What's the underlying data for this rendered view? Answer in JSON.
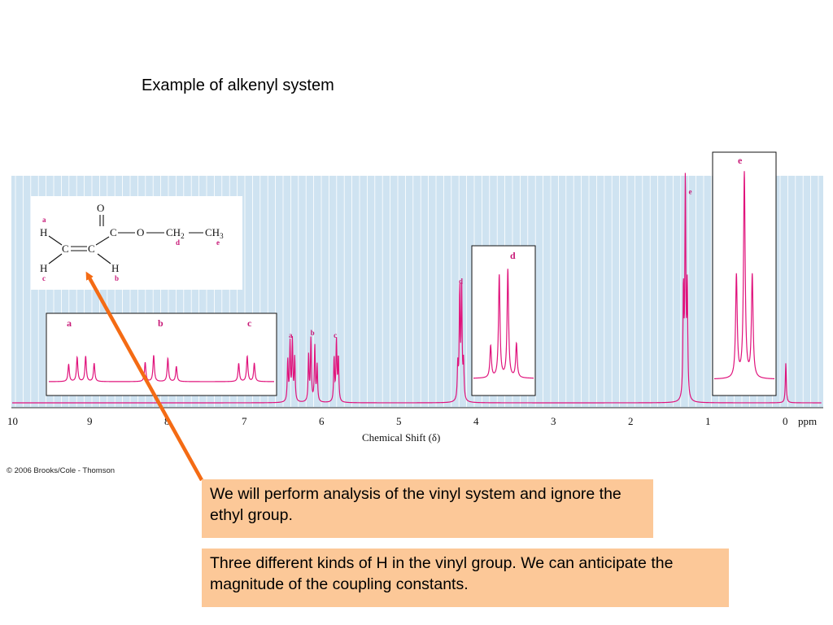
{
  "slide": {
    "title": "Example of alkenyl system",
    "copyright": "© 2006 Brooks/Cole - Thomson",
    "note1": "We will perform analysis of the vinyl system and ignore the ethyl group.",
    "note2": "Three different kinds of H in the vinyl group.  We can anticipate the magnitude of the coupling constants."
  },
  "structure": {
    "O": "O",
    "C": "C",
    "H": "H",
    "CH2": "CH",
    "CH2_sub": "2",
    "CH3": "CH",
    "CH3_sub": "3",
    "labels": [
      "a",
      "b",
      "c",
      "d",
      "e"
    ]
  },
  "colors": {
    "plot_bg": "#cfe3f1",
    "spectrum": "#e0137c",
    "label": "#c81a78",
    "arrow": "#f46b14",
    "note_bg": "#fcc898"
  },
  "chart_data": {
    "type": "line",
    "xlabel": "Chemical Shift (δ)",
    "xunit": "ppm",
    "x_ticks": [
      10,
      9,
      8,
      7,
      6,
      5,
      4,
      3,
      2,
      1,
      0
    ],
    "xlim": [
      10,
      0
    ],
    "x_reversed": true,
    "grid": true,
    "peaks": [
      {
        "label": "a",
        "ppm": 6.4,
        "multiplicity": "dd",
        "lines": [
          6.445,
          6.415,
          6.385,
          6.355
        ],
        "heights": [
          0.34,
          0.48,
          0.5,
          0.36
        ]
      },
      {
        "label": "b",
        "ppm": 6.12,
        "multiplicity": "dd",
        "lines": [
          6.175,
          6.145,
          6.095,
          6.065
        ],
        "heights": [
          0.38,
          0.52,
          0.46,
          0.3
        ]
      },
      {
        "label": "c",
        "ppm": 5.82,
        "multiplicity": "dd",
        "lines": [
          5.845,
          5.815,
          5.79
        ],
        "heights": [
          0.36,
          0.5,
          0.36
        ]
      },
      {
        "label": "d",
        "ppm": 4.2,
        "multiplicity": "quartet",
        "lines": [
          4.245,
          4.22,
          4.195,
          4.17
        ],
        "heights": [
          0.28,
          0.9,
          0.95,
          0.3
        ]
      },
      {
        "label": "e",
        "ppm": 1.3,
        "multiplicity": "triplet",
        "lines": [
          1.325,
          1.3,
          1.275
        ],
        "heights": [
          0.9,
          1.8,
          0.9
        ]
      },
      {
        "label": "",
        "ppm": 0.0,
        "multiplicity": "singlet",
        "lines": [
          0.0
        ],
        "heights": [
          0.33
        ]
      }
    ],
    "insets": [
      {
        "labels": [
          "a",
          "b",
          "c"
        ],
        "expands": "vinyl region 6.5–5.7 ppm"
      },
      {
        "labels": [
          "d"
        ],
        "expands": "quartet at 4.2 ppm"
      },
      {
        "labels": [
          "e"
        ],
        "expands": "triplet at 1.3 ppm"
      }
    ]
  }
}
